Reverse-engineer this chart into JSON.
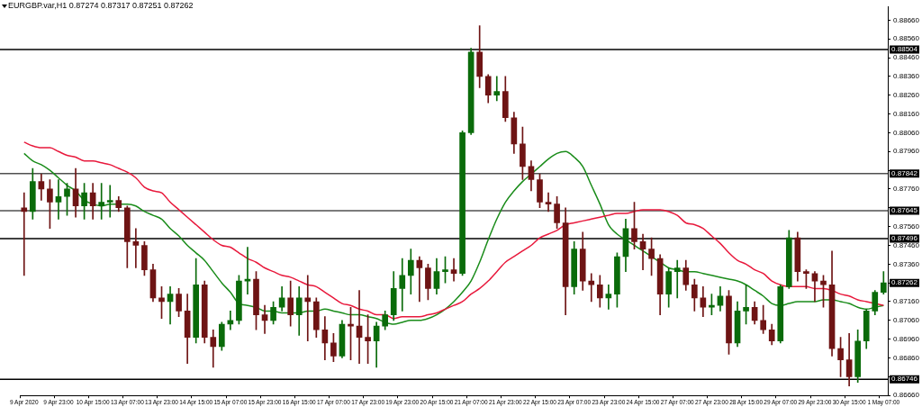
{
  "chart_data": {
    "type": "candlestick",
    "title": "EURGBP.var,H1 0.87274 0.87317 0.87251 0.87262",
    "categories": [
      "9 Apr 2020",
      null,
      null,
      null,
      "9 Apr 23:00",
      null,
      null,
      null,
      "10 Apr 15:00",
      null,
      null,
      null,
      "13 Apr 07:00",
      null,
      null,
      null,
      "13 Apr 23:00",
      null,
      null,
      null,
      "14 Apr 15:00",
      null,
      null,
      null,
      "15 Apr 07:00",
      null,
      null,
      null,
      "15 Apr 23:00",
      null,
      null,
      null,
      "16 Apr 15:00",
      null,
      null,
      null,
      "17 Apr 07:00",
      null,
      null,
      null,
      "17 Apr 23:00",
      null,
      null,
      null,
      "19 Apr 23:00",
      null,
      null,
      null,
      "20 Apr 15:00",
      null,
      null,
      null,
      "21 Apr 07:00",
      null,
      null,
      null,
      "21 Apr 23:00",
      null,
      null,
      null,
      "22 Apr 15:00",
      null,
      null,
      null,
      "23 Apr 07:00",
      null,
      null,
      null,
      "23 Apr 23:00",
      null,
      null,
      null,
      "24 Apr 15:00",
      null,
      null,
      null,
      "27 Apr 07:00",
      null,
      null,
      null,
      "27 Apr 23:00",
      null,
      null,
      null,
      "28 Apr 15:00",
      null,
      null,
      null,
      "29 Apr 07:00",
      null,
      null,
      null,
      "29 Apr 23:00",
      null,
      null,
      null,
      "30 Apr 15:00",
      null,
      null,
      null,
      "1 May 07:00"
    ],
    "ohlc": [
      [
        0.8766,
        0.8774,
        0.873,
        0.8764
      ],
      [
        0.8764,
        0.8787,
        0.876,
        0.878
      ],
      [
        0.878,
        0.8784,
        0.877,
        0.8776
      ],
      [
        0.8776,
        0.8781,
        0.8755,
        0.8769
      ],
      [
        0.8769,
        0.8781,
        0.876,
        0.8772
      ],
      [
        0.8772,
        0.8779,
        0.8762,
        0.8776
      ],
      [
        0.8776,
        0.8787,
        0.8761,
        0.8767
      ],
      [
        0.8767,
        0.8779,
        0.876,
        0.8774
      ],
      [
        0.8774,
        0.8779,
        0.876,
        0.8767
      ],
      [
        0.8767,
        0.8779,
        0.876,
        0.8769
      ],
      [
        0.8769,
        0.8778,
        0.8761,
        0.877
      ],
      [
        0.877,
        0.8772,
        0.8764,
        0.8766
      ],
      [
        0.8766,
        0.8767,
        0.8734,
        0.8748
      ],
      [
        0.8748,
        0.8755,
        0.8734,
        0.8746
      ],
      [
        0.8746,
        0.8748,
        0.873,
        0.8733
      ],
      [
        0.8733,
        0.8736,
        0.8716,
        0.8718
      ],
      [
        0.8718,
        0.8724,
        0.8707,
        0.8716
      ],
      [
        0.8716,
        0.8724,
        0.8704,
        0.872
      ],
      [
        0.872,
        0.8723,
        0.8708,
        0.8711
      ],
      [
        0.8711,
        0.872,
        0.8683,
        0.8697
      ],
      [
        0.8697,
        0.8739,
        0.8694,
        0.8725
      ],
      [
        0.8725,
        0.8727,
        0.8694,
        0.8697
      ],
      [
        0.8697,
        0.8701,
        0.8681,
        0.8692
      ],
      [
        0.8692,
        0.8705,
        0.869,
        0.8704
      ],
      [
        0.8704,
        0.8711,
        0.8701,
        0.8706
      ],
      [
        0.8706,
        0.873,
        0.8704,
        0.8727
      ],
      [
        0.8727,
        0.8745,
        0.872,
        0.8728
      ],
      [
        0.8728,
        0.8732,
        0.8701,
        0.8709
      ],
      [
        0.8709,
        0.8714,
        0.8699,
        0.8706
      ],
      [
        0.8706,
        0.8716,
        0.8704,
        0.8713
      ],
      [
        0.8713,
        0.8724,
        0.8711,
        0.8718
      ],
      [
        0.8718,
        0.8727,
        0.8703,
        0.8709
      ],
      [
        0.8709,
        0.8724,
        0.8698,
        0.8718
      ],
      [
        0.8718,
        0.873,
        0.8695,
        0.8716
      ],
      [
        0.8716,
        0.8718,
        0.8697,
        0.8701
      ],
      [
        0.8701,
        0.8708,
        0.8685,
        0.8694
      ],
      [
        0.8694,
        0.8699,
        0.8684,
        0.8687
      ],
      [
        0.8687,
        0.8706,
        0.8686,
        0.8704
      ],
      [
        0.8704,
        0.8713,
        0.8685,
        0.8703
      ],
      [
        0.8703,
        0.8722,
        0.8683,
        0.8697
      ],
      [
        0.8697,
        0.8709,
        0.8683,
        0.8695
      ],
      [
        0.8695,
        0.8705,
        0.8681,
        0.8703
      ],
      [
        0.8703,
        0.8711,
        0.8701,
        0.8709
      ],
      [
        0.8709,
        0.8732,
        0.8706,
        0.8723
      ],
      [
        0.8723,
        0.8739,
        0.8711,
        0.873
      ],
      [
        0.873,
        0.8744,
        0.872,
        0.8738
      ],
      [
        0.8738,
        0.874,
        0.8716,
        0.8734
      ],
      [
        0.8734,
        0.8736,
        0.8717,
        0.8723
      ],
      [
        0.8723,
        0.8739,
        0.872,
        0.8732
      ],
      [
        0.8732,
        0.874,
        0.8726,
        0.8733
      ],
      [
        0.8733,
        0.8739,
        0.8727,
        0.8731
      ],
      [
        0.8731,
        0.8807,
        0.873,
        0.8806
      ],
      [
        0.8806,
        0.8851,
        0.8805,
        0.8849
      ],
      [
        0.8849,
        0.8863,
        0.883,
        0.8836
      ],
      [
        0.8836,
        0.8837,
        0.8822,
        0.8826
      ],
      [
        0.8826,
        0.8836,
        0.8823,
        0.8828
      ],
      [
        0.8828,
        0.8836,
        0.8812,
        0.8814
      ],
      [
        0.8814,
        0.8817,
        0.8795,
        0.88
      ],
      [
        0.88,
        0.8809,
        0.8781,
        0.8788
      ],
      [
        0.8788,
        0.8791,
        0.8775,
        0.8781
      ],
      [
        0.8781,
        0.8784,
        0.8766,
        0.8769
      ],
      [
        0.8769,
        0.8774,
        0.8764,
        0.8768
      ],
      [
        0.8768,
        0.8772,
        0.8755,
        0.8758
      ],
      [
        0.8758,
        0.8766,
        0.8709,
        0.8724
      ],
      [
        0.8724,
        0.8748,
        0.872,
        0.8744
      ],
      [
        0.8744,
        0.8753,
        0.8722,
        0.8727
      ],
      [
        0.8727,
        0.8731,
        0.8716,
        0.8725
      ],
      [
        0.8725,
        0.873,
        0.8713,
        0.8718
      ],
      [
        0.8718,
        0.8725,
        0.8712,
        0.872
      ],
      [
        0.872,
        0.8742,
        0.8713,
        0.874
      ],
      [
        0.874,
        0.876,
        0.8732,
        0.8755
      ],
      [
        0.8755,
        0.8769,
        0.8744,
        0.8748
      ],
      [
        0.8748,
        0.8752,
        0.8733,
        0.8744
      ],
      [
        0.8744,
        0.875,
        0.873,
        0.8739
      ],
      [
        0.8739,
        0.8741,
        0.8709,
        0.872
      ],
      [
        0.872,
        0.8734,
        0.8713,
        0.8732
      ],
      [
        0.8732,
        0.8738,
        0.8718,
        0.8734
      ],
      [
        0.8734,
        0.8738,
        0.8722,
        0.8725
      ],
      [
        0.8725,
        0.8728,
        0.8711,
        0.8718
      ],
      [
        0.8718,
        0.8724,
        0.8708,
        0.8713
      ],
      [
        0.8713,
        0.872,
        0.8709,
        0.8714
      ],
      [
        0.8714,
        0.8724,
        0.8711,
        0.8719
      ],
      [
        0.8719,
        0.8722,
        0.8688,
        0.8694
      ],
      [
        0.8694,
        0.8716,
        0.8692,
        0.8711
      ],
      [
        0.8711,
        0.8725,
        0.8704,
        0.8713
      ],
      [
        0.8713,
        0.8716,
        0.8704,
        0.8706
      ],
      [
        0.8706,
        0.8714,
        0.8699,
        0.8701
      ],
      [
        0.8701,
        0.8704,
        0.8693,
        0.8695
      ],
      [
        0.8695,
        0.8725,
        0.8694,
        0.8724
      ],
      [
        0.8724,
        0.8754,
        0.8723,
        0.875
      ],
      [
        0.875,
        0.8753,
        0.8727,
        0.8732
      ],
      [
        0.8732,
        0.8733,
        0.8723,
        0.8731
      ],
      [
        0.8731,
        0.8732,
        0.8716,
        0.8727
      ],
      [
        0.8727,
        0.873,
        0.8713,
        0.8725
      ],
      [
        0.8725,
        0.8743,
        0.8687,
        0.8691
      ],
      [
        0.8691,
        0.8697,
        0.8676,
        0.8685
      ],
      [
        0.8685,
        0.8699,
        0.8671,
        0.8676
      ],
      [
        0.8676,
        0.8701,
        0.8673,
        0.8695
      ],
      [
        0.8695,
        0.8712,
        0.8691,
        0.8711
      ],
      [
        0.8711,
        0.8722,
        0.8709,
        0.8721
      ],
      [
        0.8721,
        0.8732,
        0.872,
        0.8726
      ]
    ],
    "colors": [
      "#6e1414",
      "#0a6b0a",
      "#6e1414",
      "#6e1414",
      "#0a6b0a",
      "#0a6b0a",
      "#6e1414",
      "#0a6b0a",
      "#6e1414",
      "#0a6b0a",
      "#0a6b0a",
      "#6e1414",
      "#6e1414",
      "#6e1414",
      "#6e1414",
      "#6e1414",
      "#6e1414",
      "#0a6b0a",
      "#6e1414",
      "#6e1414",
      "#0a6b0a",
      "#6e1414",
      "#6e1414",
      "#0a6b0a",
      "#0a6b0a",
      "#0a6b0a",
      "#0a6b0a",
      "#6e1414",
      "#6e1414",
      "#0a6b0a",
      "#0a6b0a",
      "#6e1414",
      "#0a6b0a",
      "#6e1414",
      "#6e1414",
      "#6e1414",
      "#6e1414",
      "#0a6b0a",
      "#6e1414",
      "#6e1414",
      "#6e1414",
      "#0a6b0a",
      "#0a6b0a",
      "#0a6b0a",
      "#0a6b0a",
      "#0a6b0a",
      "#6e1414",
      "#6e1414",
      "#0a6b0a",
      "#0a6b0a",
      "#6e1414",
      "#0a6b0a",
      "#0a6b0a",
      "#6e1414",
      "#6e1414",
      "#0a6b0a",
      "#6e1414",
      "#6e1414",
      "#6e1414",
      "#6e1414",
      "#6e1414",
      "#6e1414",
      "#6e1414",
      "#6e1414",
      "#0a6b0a",
      "#6e1414",
      "#6e1414",
      "#6e1414",
      "#0a6b0a",
      "#0a6b0a",
      "#0a6b0a",
      "#6e1414",
      "#6e1414",
      "#6e1414",
      "#6e1414",
      "#0a6b0a",
      "#0a6b0a",
      "#6e1414",
      "#6e1414",
      "#6e1414",
      "#0a6b0a",
      "#0a6b0a",
      "#6e1414",
      "#0a6b0a",
      "#0a6b0a",
      "#6e1414",
      "#6e1414",
      "#6e1414",
      "#0a6b0a",
      "#0a6b0a",
      "#6e1414",
      "#6e1414",
      "#6e1414",
      "#6e1414",
      "#6e1414",
      "#6e1414",
      "#6e1414",
      "#0a6b0a",
      "#0a6b0a",
      "#0a6b0a",
      "#0a6b0a"
    ],
    "series": [
      {
        "type": "line",
        "color": "#e8193c",
        "values": [
          0.8801,
          0.8799,
          0.8798,
          0.8798,
          0.8796,
          0.8794,
          0.8793,
          0.8791,
          0.8791,
          0.879,
          0.8789,
          0.8787,
          0.8785,
          0.8782,
          0.8777,
          0.8775,
          0.8774,
          0.8769,
          0.8765,
          0.8761,
          0.8757,
          0.8753,
          0.8749,
          0.8746,
          0.8745,
          0.8742,
          0.8739,
          0.8737,
          0.8734,
          0.8732,
          0.873,
          0.8729,
          0.8727,
          0.8725,
          0.8724,
          0.8721,
          0.8718,
          0.8715,
          0.8714,
          0.8712,
          0.8711,
          0.8709,
          0.8709,
          0.8707,
          0.8708,
          0.8708,
          0.8708,
          0.8709,
          0.871,
          0.8712,
          0.8714,
          0.8716,
          0.872,
          0.8723,
          0.8727,
          0.8732,
          0.8737,
          0.874,
          0.8743,
          0.8746,
          0.875,
          0.8752,
          0.8754,
          0.8757,
          0.8758,
          0.8759,
          0.876,
          0.8761,
          0.8762,
          0.8763,
          0.8763,
          0.8764,
          0.8765,
          0.8765,
          0.8765,
          0.8764,
          0.8762,
          0.8758,
          0.8757,
          0.8755,
          0.8751,
          0.8747,
          0.8742,
          0.8738,
          0.8736,
          0.8733,
          0.8731,
          0.8727,
          0.8725,
          0.8724,
          0.8724,
          0.8724,
          0.8723,
          0.8723,
          0.8722,
          0.872,
          0.8719,
          0.8717,
          0.8716,
          0.8715,
          0.8714
        ]
      },
      {
        "type": "line",
        "color": "#1a8c1a",
        "values": [
          0.8795,
          0.8791,
          0.8789,
          0.8786,
          0.8782,
          0.8778,
          0.8775,
          0.877,
          0.8768,
          0.8767,
          0.8768,
          0.8768,
          0.8768,
          0.8767,
          0.8764,
          0.8762,
          0.876,
          0.8755,
          0.8751,
          0.8746,
          0.8742,
          0.8738,
          0.8732,
          0.8726,
          0.8721,
          0.8715,
          0.8714,
          0.8713,
          0.8711,
          0.8711,
          0.871,
          0.871,
          0.871,
          0.8711,
          0.8711,
          0.8712,
          0.8711,
          0.871,
          0.8709,
          0.8709,
          0.8708,
          0.8707,
          0.8705,
          0.8704,
          0.8705,
          0.8706,
          0.8706,
          0.8707,
          0.8709,
          0.8712,
          0.8716,
          0.8721,
          0.8727,
          0.8737,
          0.8749,
          0.876,
          0.8769,
          0.8775,
          0.878,
          0.8784,
          0.8788,
          0.8792,
          0.8795,
          0.8796,
          0.8793,
          0.8788,
          0.8778,
          0.8768,
          0.8757,
          0.8752,
          0.8749,
          0.8746,
          0.8743,
          0.874,
          0.8737,
          0.8734,
          0.8733,
          0.8732,
          0.8732,
          0.8731,
          0.873,
          0.8729,
          0.8728,
          0.8727,
          0.8725,
          0.8722,
          0.8719,
          0.8715,
          0.8714,
          0.8715,
          0.8716,
          0.8716,
          0.8716,
          0.8717,
          0.8717,
          0.8716,
          0.8715,
          0.8713,
          0.8712,
          0.8713,
          0.8714
        ]
      }
    ],
    "marker": "none",
    "ylim": [
      0.8666,
      0.8873
    ],
    "yticks": [
      {
        "value": 0.8666,
        "label": "0.86660"
      },
      {
        "value": 0.8676,
        "label": null
      },
      {
        "value": 0.8686,
        "label": "0.86860"
      },
      {
        "value": 0.8696,
        "label": "0.86960"
      },
      {
        "value": 0.8706,
        "label": "0.87060"
      },
      {
        "value": 0.8716,
        "label": "0.87160"
      },
      {
        "value": 0.8726,
        "label": null
      },
      {
        "value": 0.8736,
        "label": "0.87360"
      },
      {
        "value": 0.8746,
        "label": "0.87460"
      },
      {
        "value": 0.8756,
        "label": "0.87560"
      },
      {
        "value": 0.8766,
        "label": null
      },
      {
        "value": 0.8776,
        "label": "0.87760"
      },
      {
        "value": 0.8786,
        "label": null
      },
      {
        "value": 0.8796,
        "label": "0.87960"
      },
      {
        "value": 0.8806,
        "label": "0.88060"
      },
      {
        "value": 0.8816,
        "label": "0.88160"
      },
      {
        "value": 0.8826,
        "label": "0.88260"
      },
      {
        "value": 0.8836,
        "label": "0.88360"
      },
      {
        "value": 0.8846,
        "label": "0.88460"
      },
      {
        "value": 0.8856,
        "label": "0.88560"
      },
      {
        "value": 0.8866,
        "label": "0.88660"
      }
    ],
    "ref_lines": [
      {
        "axis": "y",
        "value": 0.88504,
        "label": "0.88504",
        "color": "#000000"
      },
      {
        "axis": "y",
        "value": 0.87842,
        "label": "0.87842",
        "color": "#505050"
      },
      {
        "axis": "y",
        "value": 0.87645,
        "label": "0.87645",
        "color": "#505050"
      },
      {
        "axis": "y",
        "value": 0.87496,
        "label": "0.87496",
        "color": "#000000"
      },
      {
        "axis": "y",
        "value": 0.86746,
        "label": "0.86746",
        "color": "#000000"
      }
    ],
    "annotations": [
      "0.87262"
    ]
  }
}
